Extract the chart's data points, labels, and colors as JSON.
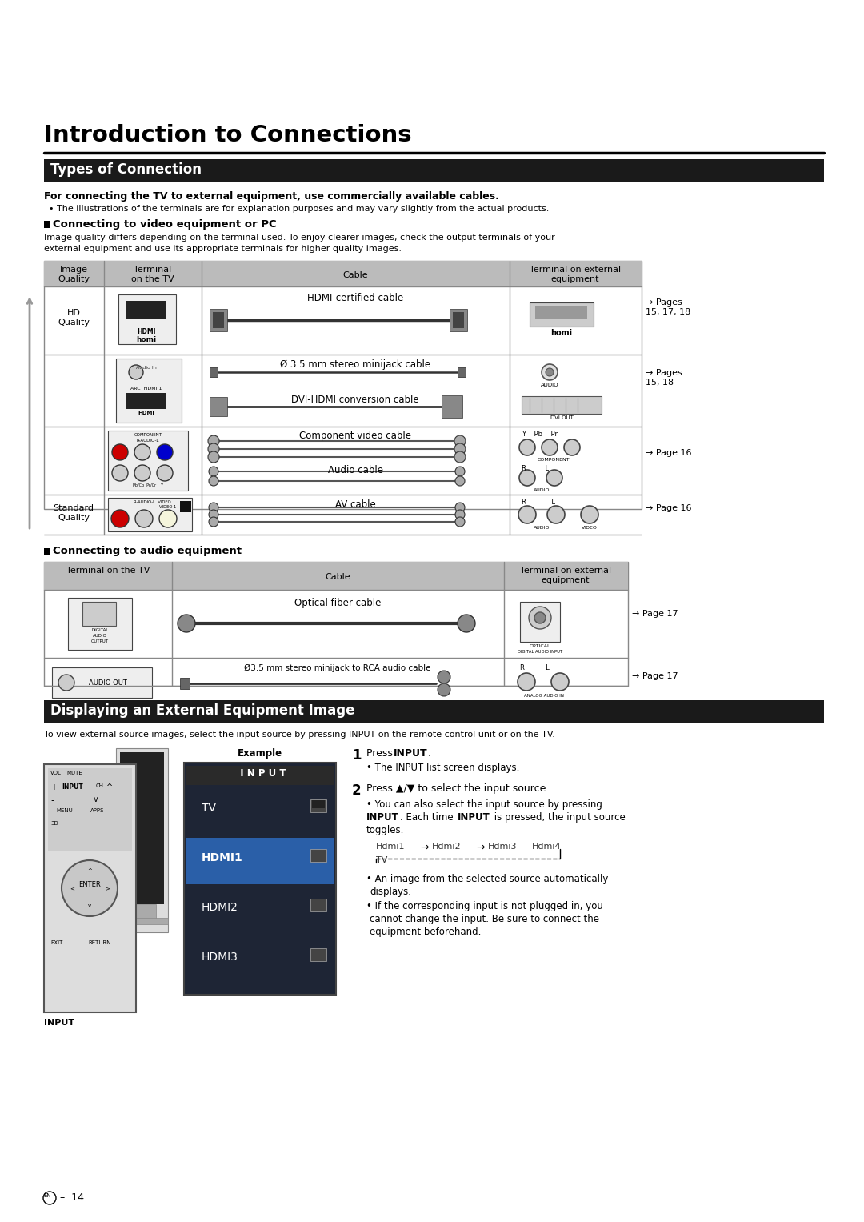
{
  "title": "Introduction to Connections",
  "section1_title": "Types of Connection",
  "section2_title": "Displaying an External Equipment Image",
  "bold_note": "For connecting the TV to external equipment, use commercially available cables.",
  "bullet_note": "The illustrations of the terminals are for explanation purposes and may vary slightly from the actual products.",
  "video_section_title": "Connecting to video equipment or PC",
  "video_section_body": "Image quality differs depending on the terminal used. To enjoy clearer images, check the output terminals of your\nexternal equipment and use its appropriate terminals for higher quality images.",
  "audio_section_title": "Connecting to audio equipment",
  "display_section_body": "To view external source images, select the input source by pressing INPUT on the remote control unit or on the TV.",
  "background_color": "#ffffff",
  "section_header_bg": "#1a1a1a",
  "section_header_text": "#ffffff",
  "table_header_bg": "#bbbbbb",
  "table_border_color": "#888888",
  "page_number": "14"
}
